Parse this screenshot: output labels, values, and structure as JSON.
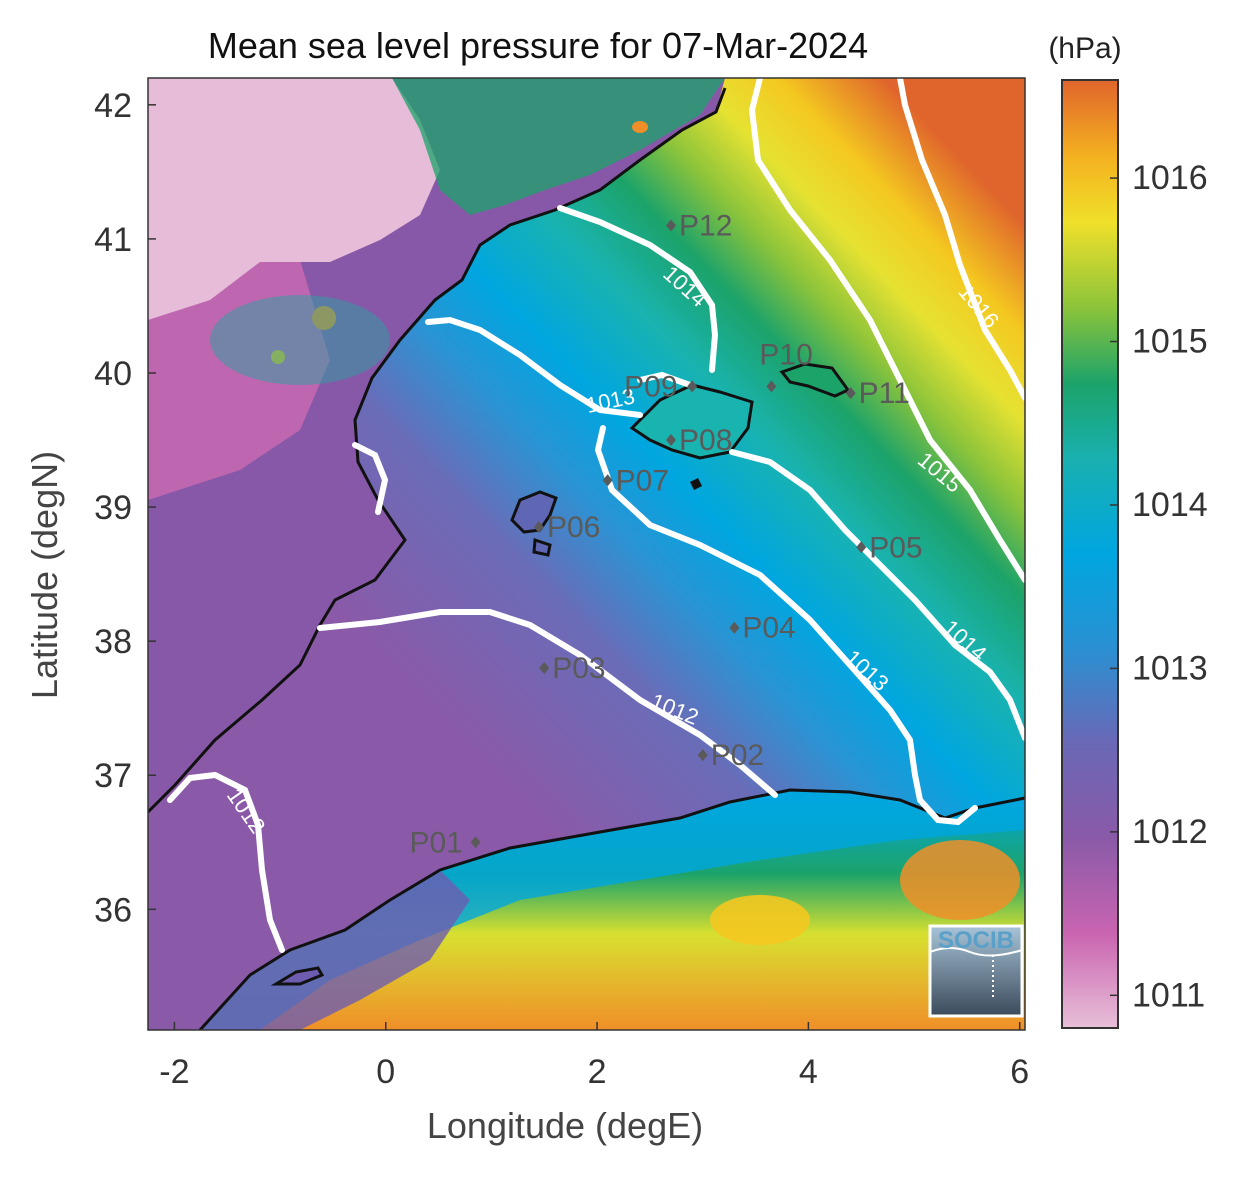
{
  "title": "Mean sea level pressure for 07-Mar-2024",
  "colorbar": {
    "unit": "(hPa)",
    "min": 1010.8,
    "max": 1016.6,
    "ticks": [
      "1011",
      "1012",
      "1013",
      "1014",
      "1015",
      "1016"
    ],
    "colors": [
      "#e8bfd8",
      "#c964b0",
      "#8a5aa8",
      "#4a7cc2",
      "#00a6e0",
      "#19b3b0",
      "#1ca36a",
      "#6cbc3a",
      "#d8e030",
      "#f4c820",
      "#f08f28",
      "#e0652c"
    ]
  },
  "axes": {
    "xlabel": "Longitude (degE)",
    "ylabel": "Latitude (degN)",
    "xlim": [
      -2.25,
      6.05
    ],
    "ylim": [
      35.1,
      42.2
    ],
    "xticks": [
      "-2",
      "0",
      "2",
      "4",
      "6"
    ],
    "yticks": [
      "36",
      "37",
      "38",
      "39",
      "40",
      "41",
      "42"
    ]
  },
  "contour_labels": [
    "1012",
    "1012",
    "1013",
    "1013",
    "1014",
    "1014",
    "1015",
    "1016"
  ],
  "stations": [
    {
      "id": "P01",
      "lon": 0.85,
      "lat": 36.5
    },
    {
      "id": "P02",
      "lon": 3.0,
      "lat": 37.15
    },
    {
      "id": "P03",
      "lon": 1.5,
      "lat": 37.8
    },
    {
      "id": "P04",
      "lon": 3.3,
      "lat": 38.1
    },
    {
      "id": "P05",
      "lon": 4.5,
      "lat": 38.7
    },
    {
      "id": "P06",
      "lon": 1.45,
      "lat": 38.85
    },
    {
      "id": "P07",
      "lon": 2.1,
      "lat": 39.2
    },
    {
      "id": "P08",
      "lon": 2.7,
      "lat": 39.5
    },
    {
      "id": "P09",
      "lon": 2.9,
      "lat": 39.9
    },
    {
      "id": "P10",
      "lon": 3.65,
      "lat": 39.9
    },
    {
      "id": "P11",
      "lon": 4.4,
      "lat": 39.85
    },
    {
      "id": "P12",
      "lon": 2.7,
      "lat": 41.1
    }
  ],
  "logo": {
    "text": "SOCIB"
  }
}
